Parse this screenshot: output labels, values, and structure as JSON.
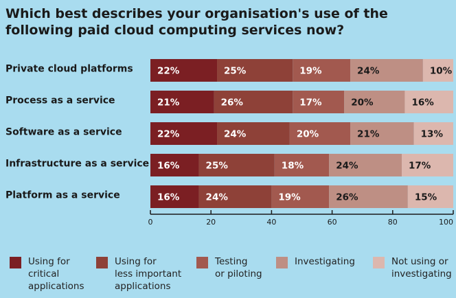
{
  "chart_data": {
    "type": "bar",
    "orientation": "horizontal",
    "stacked": true,
    "title": "Which best describes your organisation's use of the following paid cloud computing services now?",
    "categories": [
      "Private cloud platforms",
      "Process as a service",
      "Software as a service",
      "Infrastructure as a service",
      "Platform as a service"
    ],
    "series": [
      {
        "name": "Using for\ncritical\napplications",
        "values": [
          22,
          21,
          22,
          16,
          16
        ],
        "color": "#7b1f23",
        "label_color": "#ffffff"
      },
      {
        "name": "Using for\nless important\napplications",
        "values": [
          25,
          26,
          24,
          25,
          24
        ],
        "color": "#8e4138",
        "label_color": "#ffffff"
      },
      {
        "name": "Testing\nor piloting",
        "values": [
          19,
          17,
          20,
          18,
          19
        ],
        "color": "#a2594f",
        "label_color": "#ffffff"
      },
      {
        "name": "Investigating",
        "values": [
          24,
          20,
          21,
          24,
          26
        ],
        "color": "#be8f84",
        "label_color": "#1a1a1a"
      },
      {
        "name": "Not using or\ninvestigating",
        "values": [
          10,
          16,
          13,
          17,
          15
        ],
        "color": "#dcb7ae",
        "label_color": "#1a1a1a"
      }
    ],
    "value_suffix": "%",
    "xlim": [
      0,
      100
    ],
    "xticks": [
      0,
      20,
      40,
      60,
      80,
      100
    ],
    "grid": false,
    "legend_position": "bottom"
  }
}
